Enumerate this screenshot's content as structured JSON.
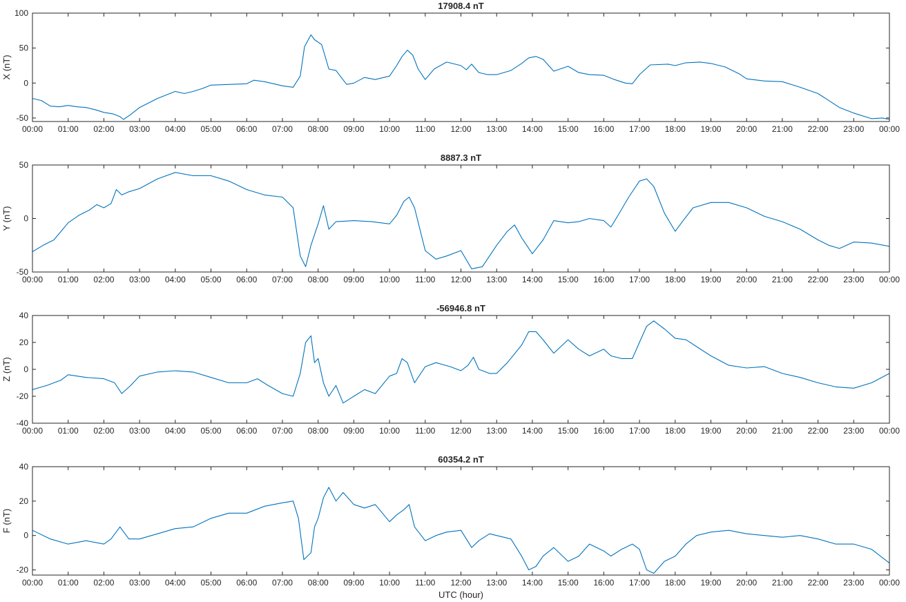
{
  "chart_data": [
    {
      "type": "line",
      "title": "17908.4 nT",
      "ylabel": "X (nT)",
      "xlabel": "",
      "ylim": [
        -55,
        100
      ],
      "yticks": [
        -50,
        0,
        50,
        100
      ],
      "xlim": [
        0,
        24
      ],
      "series": [
        {
          "color": "#0072BD",
          "x": [
            0,
            0.25,
            0.5,
            0.75,
            1,
            1.25,
            1.5,
            1.75,
            2,
            2.25,
            2.45,
            2.55,
            2.75,
            3,
            3.5,
            4,
            4.25,
            4.5,
            4.75,
            5,
            5.5,
            6,
            6.2,
            6.5,
            7,
            7.3,
            7.5,
            7.62,
            7.8,
            7.9,
            8.1,
            8.3,
            8.5,
            8.8,
            9,
            9.3,
            9.6,
            10,
            10.2,
            10.35,
            10.5,
            10.65,
            10.8,
            11,
            11.25,
            11.6,
            12,
            12.15,
            12.3,
            12.5,
            12.75,
            13,
            13.4,
            13.7,
            13.9,
            14.1,
            14.3,
            14.6,
            15,
            15.3,
            15.6,
            16,
            16.3,
            16.6,
            16.8,
            17,
            17.3,
            17.8,
            18,
            18.3,
            18.7,
            19,
            19.4,
            19.8,
            20,
            20.5,
            21,
            21.5,
            22,
            22.3,
            22.6,
            23,
            23.5,
            23.8,
            24
          ],
          "y": [
            -22,
            -25,
            -33,
            -34,
            -32,
            -34,
            -35,
            -38,
            -42,
            -44,
            -48,
            -52,
            -45,
            -35,
            -22,
            -12,
            -15,
            -12,
            -8,
            -3,
            -2,
            -1,
            4,
            2,
            -4,
            -6,
            10,
            52,
            69,
            62,
            55,
            20,
            18,
            -2,
            0,
            8,
            5,
            10,
            25,
            38,
            47,
            40,
            20,
            5,
            20,
            30,
            25,
            19,
            27,
            15,
            12,
            12,
            18,
            28,
            36,
            38,
            34,
            17,
            24,
            15,
            12,
            11,
            5,
            0,
            -1,
            12,
            26,
            27,
            25,
            29,
            30,
            28,
            23,
            13,
            6,
            3,
            2,
            -6,
            -15,
            -25,
            -35,
            -43,
            -51,
            -50,
            -52
          ]
        }
      ]
    },
    {
      "type": "line",
      "title": "8887.3 nT",
      "ylabel": "Y (nT)",
      "xlabel": "",
      "ylim": [
        -50,
        50
      ],
      "yticks": [
        -50,
        0,
        50
      ],
      "xlim": [
        0,
        24
      ],
      "series": [
        {
          "color": "#0072BD",
          "x": [
            0,
            0.3,
            0.6,
            0.8,
            1,
            1.3,
            1.6,
            1.8,
            2,
            2.2,
            2.35,
            2.5,
            2.7,
            3,
            3.5,
            4,
            4.5,
            5,
            5.5,
            6,
            6.5,
            7,
            7.3,
            7.5,
            7.65,
            7.8,
            7.9,
            8,
            8.15,
            8.3,
            8.5,
            9,
            9.5,
            10,
            10.2,
            10.4,
            10.55,
            10.7,
            11,
            11.3,
            11.6,
            12,
            12.3,
            12.6,
            13,
            13.3,
            13.5,
            13.7,
            14,
            14.3,
            14.6,
            15,
            15.3,
            15.6,
            16,
            16.2,
            16.4,
            16.7,
            17,
            17.2,
            17.4,
            17.7,
            18,
            18.2,
            18.5,
            19,
            19.5,
            20,
            20.5,
            21,
            21.5,
            22,
            22.3,
            22.6,
            23,
            23.5,
            24
          ],
          "y": [
            -31,
            -25,
            -20,
            -12,
            -4,
            3,
            8,
            13,
            10,
            14,
            27,
            22,
            25,
            28,
            37,
            43,
            40,
            40,
            35,
            27,
            22,
            20,
            10,
            -35,
            -45,
            -25,
            -15,
            -5,
            12,
            -10,
            -3,
            -2,
            -3,
            -5,
            3,
            16,
            20,
            10,
            -30,
            -38,
            -35,
            -30,
            -47,
            -45,
            -25,
            -12,
            -6,
            -18,
            -33,
            -20,
            -2,
            -4,
            -3,
            0,
            -2,
            -8,
            3,
            20,
            35,
            37,
            30,
            5,
            -12,
            -3,
            10,
            15,
            15,
            10,
            2,
            -3,
            -10,
            -20,
            -25,
            -28,
            -22,
            -23,
            -26
          ]
        }
      ]
    },
    {
      "type": "line",
      "title": "-56946.8 nT",
      "ylabel": "Z (nT)",
      "xlabel": "",
      "ylim": [
        -40,
        40
      ],
      "yticks": [
        -40,
        -20,
        0,
        20,
        40
      ],
      "xlim": [
        0,
        24
      ],
      "series": [
        {
          "color": "#0072BD",
          "x": [
            0,
            0.4,
            0.8,
            1,
            1.5,
            2,
            2.3,
            2.5,
            2.75,
            3,
            3.5,
            4,
            4.5,
            5,
            5.5,
            6,
            6.3,
            6.6,
            7,
            7.3,
            7.5,
            7.65,
            7.8,
            7.9,
            8,
            8.15,
            8.3,
            8.5,
            8.7,
            9,
            9.3,
            9.6,
            10,
            10.2,
            10.35,
            10.5,
            10.7,
            11,
            11.3,
            11.7,
            12,
            12.2,
            12.35,
            12.5,
            12.8,
            13,
            13.3,
            13.7,
            13.9,
            14.1,
            14.3,
            14.6,
            14.8,
            15,
            15.3,
            15.6,
            16,
            16.2,
            16.5,
            16.8,
            17,
            17.2,
            17.4,
            17.7,
            18,
            18.3,
            19,
            19.5,
            20,
            20.5,
            21,
            21.5,
            22,
            22.5,
            23,
            23.5,
            24
          ],
          "y": [
            -15,
            -12,
            -8,
            -4,
            -6,
            -7,
            -10,
            -18,
            -12,
            -5,
            -2,
            -1,
            -2,
            -6,
            -10,
            -10,
            -7,
            -12,
            -18,
            -20,
            -3,
            20,
            25,
            5,
            8,
            -10,
            -20,
            -12,
            -25,
            -20,
            -15,
            -18,
            -5,
            -3,
            8,
            5,
            -10,
            2,
            5,
            2,
            -1,
            3,
            9,
            0,
            -3,
            -3,
            5,
            18,
            28,
            28,
            22,
            12,
            17,
            22,
            15,
            10,
            15,
            10,
            8,
            8,
            20,
            32,
            36,
            30,
            23,
            22,
            10,
            3,
            1,
            2,
            -3,
            -6,
            -10,
            -13,
            -14,
            -10,
            -3
          ]
        }
      ]
    },
    {
      "type": "line",
      "title": "60354.2 nT",
      "ylabel": "F (nT)",
      "xlabel": "UTC (hour)",
      "ylim": [
        -23,
        40
      ],
      "yticks": [
        -20,
        0,
        20,
        40
      ],
      "xlim": [
        0,
        24
      ],
      "series": [
        {
          "color": "#0072BD",
          "x": [
            0,
            0.5,
            1,
            1.5,
            2,
            2.2,
            2.45,
            2.7,
            3,
            3.5,
            4,
            4.5,
            5,
            5.5,
            6,
            6.5,
            7,
            7.3,
            7.45,
            7.6,
            7.8,
            7.9,
            8,
            8.15,
            8.3,
            8.5,
            8.7,
            9,
            9.3,
            9.6,
            10,
            10.2,
            10.4,
            10.55,
            10.7,
            11,
            11.3,
            11.6,
            12,
            12.3,
            12.5,
            12.8,
            13,
            13.4,
            13.7,
            13.9,
            14.1,
            14.3,
            14.6,
            15,
            15.3,
            15.6,
            16,
            16.2,
            16.5,
            16.8,
            17,
            17.2,
            17.4,
            17.7,
            18,
            18.3,
            18.6,
            19,
            19.5,
            20,
            20.5,
            21,
            21.5,
            22,
            22.5,
            23,
            23.5,
            24
          ],
          "y": [
            3,
            -2,
            -5,
            -3,
            -5,
            -2,
            5,
            -2,
            -2,
            1,
            4,
            5,
            10,
            13,
            13,
            17,
            19,
            20,
            10,
            -14,
            -10,
            5,
            10,
            22,
            28,
            20,
            25,
            18,
            16,
            18,
            8,
            12,
            15,
            18,
            5,
            -3,
            0,
            2,
            3,
            -7,
            -3,
            1,
            0,
            -2,
            -12,
            -20,
            -18,
            -12,
            -7,
            -15,
            -12,
            -5,
            -9,
            -12,
            -8,
            -5,
            -8,
            -20,
            -22,
            -15,
            -12,
            -5,
            0,
            2,
            3,
            1,
            0,
            -1,
            0,
            -2,
            -5,
            -5,
            -8,
            -16
          ]
        }
      ]
    }
  ],
  "xticklabels": [
    "00:00",
    "01:00",
    "02:00",
    "03:00",
    "04:00",
    "05:00",
    "06:00",
    "07:00",
    "08:00",
    "09:00",
    "10:00",
    "11:00",
    "12:00",
    "13:00",
    "14:00",
    "15:00",
    "16:00",
    "17:00",
    "18:00",
    "19:00",
    "20:00",
    "21:00",
    "22:00",
    "23:00",
    "00:00"
  ]
}
